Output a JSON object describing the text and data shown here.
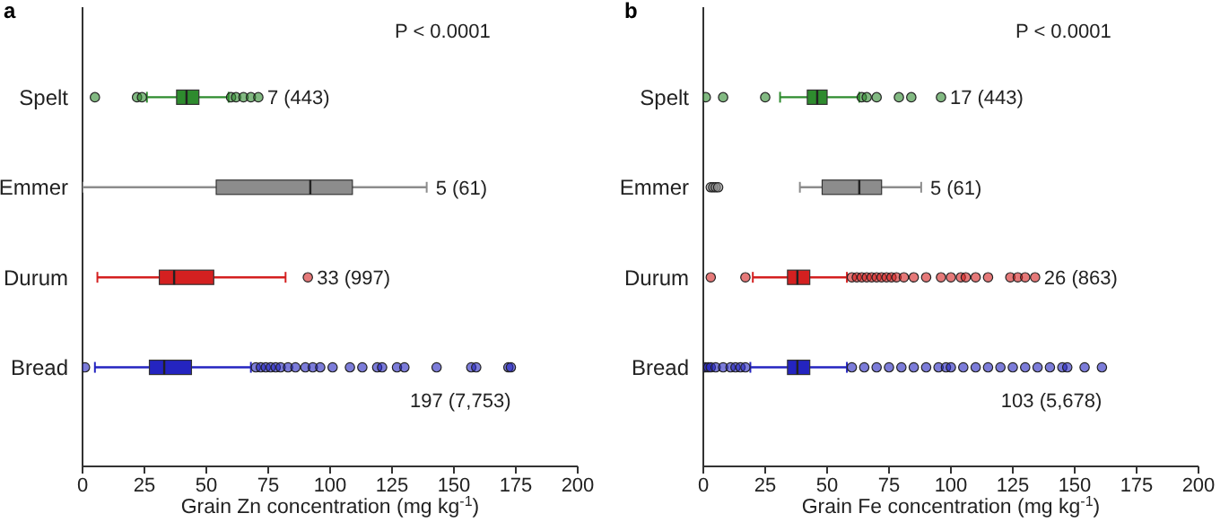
{
  "chart_data": [
    {
      "type": "box",
      "title": "a",
      "orientation": "horizontal",
      "categories": [
        "Spelt",
        "Emmer",
        "Durum",
        "Bread"
      ],
      "colors": [
        "#2e8b2e",
        "#8c8c8c",
        "#d42020",
        "#2424c0"
      ],
      "boxes": [
        {
          "low": 26,
          "q1": 38,
          "median": 42,
          "q3": 47,
          "high": 59,
          "outliers": [
            5,
            22,
            24,
            60,
            62,
            65,
            68,
            71
          ]
        },
        {
          "low": 0,
          "q1": 54,
          "median": 92,
          "q3": 109,
          "high": 139
        },
        {
          "low": 6,
          "q1": 31,
          "median": 37,
          "q3": 53,
          "high": 82,
          "outliers": [
            91
          ]
        },
        {
          "low": 5,
          "q1": 27,
          "median": 33,
          "q3": 44,
          "high": 68,
          "outliers": [
            1,
            70,
            72,
            74,
            76,
            78,
            80,
            83,
            86,
            90,
            93,
            96,
            101,
            108,
            113,
            119,
            121,
            127,
            130,
            143,
            157,
            159,
            172,
            173
          ]
        }
      ],
      "xlim": [
        0,
        200
      ],
      "xticks": [
        0,
        25,
        50,
        75,
        100,
        125,
        150,
        175,
        200
      ],
      "xlabel": "Grain Zn concentration (mg kg$^{-1}$)",
      "annotations": [
        "P < 0.0001",
        "7 (443)",
        "5 (61)",
        "33 (997)",
        "197 (7,753)"
      ]
    },
    {
      "type": "box",
      "title": "b",
      "orientation": "horizontal",
      "categories": [
        "Spelt",
        "Emmer",
        "Durum",
        "Bread"
      ],
      "colors": [
        "#2e8b2e",
        "#8c8c8c",
        "#d42020",
        "#2424c0"
      ],
      "boxes": [
        {
          "low": 31,
          "q1": 42,
          "median": 46,
          "q3": 50,
          "high": 63,
          "outliers": [
            1,
            8,
            25,
            64,
            66,
            70,
            79,
            84,
            96
          ]
        },
        {
          "low": 39,
          "q1": 48,
          "median": 63,
          "q3": 72,
          "high": 88,
          "outliers": [
            3,
            4,
            5,
            6
          ]
        },
        {
          "low": 20,
          "q1": 34,
          "median": 38,
          "q3": 43,
          "high": 58,
          "outliers": [
            3,
            17,
            60,
            62,
            64,
            66,
            68,
            70,
            72,
            74,
            76,
            78,
            81,
            85,
            90,
            96,
            100,
            104,
            106,
            110,
            115,
            124,
            127,
            130,
            134
          ]
        },
        {
          "low": 19,
          "q1": 34,
          "median": 38,
          "q3": 43,
          "high": 58,
          "outliers": [
            0,
            1,
            2,
            3,
            5,
            8,
            11,
            13,
            15,
            17,
            60,
            65,
            70,
            75,
            80,
            85,
            90,
            95,
            98,
            100,
            105,
            110,
            115,
            120,
            125,
            130,
            135,
            140,
            145,
            147,
            154,
            161
          ]
        }
      ],
      "xlim": [
        0,
        200
      ],
      "xticks": [
        0,
        25,
        50,
        75,
        100,
        125,
        150,
        175,
        200
      ],
      "xlabel": "Grain Fe concentration (mg kg$^{-1}$)",
      "annotations": [
        "P < 0.0001",
        "17 (443)",
        "5 (61)",
        "26 (863)",
        "103 (5,678)"
      ]
    }
  ]
}
